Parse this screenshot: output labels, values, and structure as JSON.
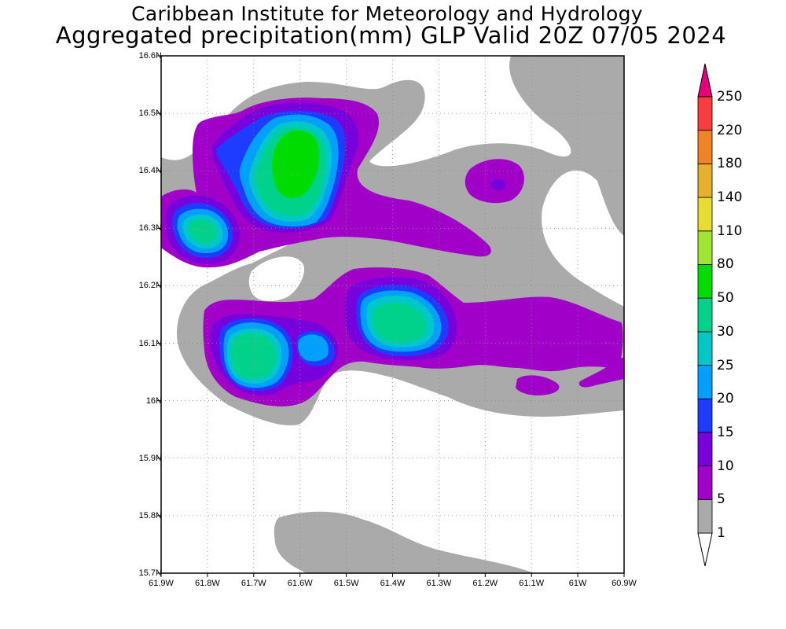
{
  "title": {
    "line1": "Caribbean Institute for Meteorology and Hydrology",
    "line2": "Aggregated precipitation(mm) GLP Valid 20Z 07/05 2024"
  },
  "map": {
    "lon_range": [
      -61.9,
      -60.9
    ],
    "lat_range": [
      15.7,
      16.6
    ],
    "grid": true,
    "x_tick_labels": [
      "61.9W",
      "61.8W",
      "61.7W",
      "61.6W",
      "61.5W",
      "61.4W",
      "61.3W",
      "61.2W",
      "61.1W",
      "61W",
      "60.9W"
    ],
    "y_tick_labels": [
      "16.6N",
      "16.5N",
      "16.4N",
      "16.3N",
      "16.2N",
      "16.1N",
      "16N",
      "15.9N",
      "15.8N",
      "15.7N"
    ],
    "field": "Aggregated precipitation (mm)"
  },
  "colorbar": {
    "levels": [
      "1",
      "5",
      "10",
      "15",
      "20",
      "25",
      "30",
      "50",
      "80",
      "110",
      "140",
      "180",
      "220",
      "250"
    ],
    "colors": [
      "#ffffff",
      "#aaaaaa",
      "#a000c8",
      "#7800dc",
      "#1e3cff",
      "#00a0ff",
      "#00c8c8",
      "#00d28c",
      "#00dc00",
      "#a0e632",
      "#e6dc32",
      "#e6af2d",
      "#f08228",
      "#fa3c3c",
      "#e6007a"
    ]
  }
}
